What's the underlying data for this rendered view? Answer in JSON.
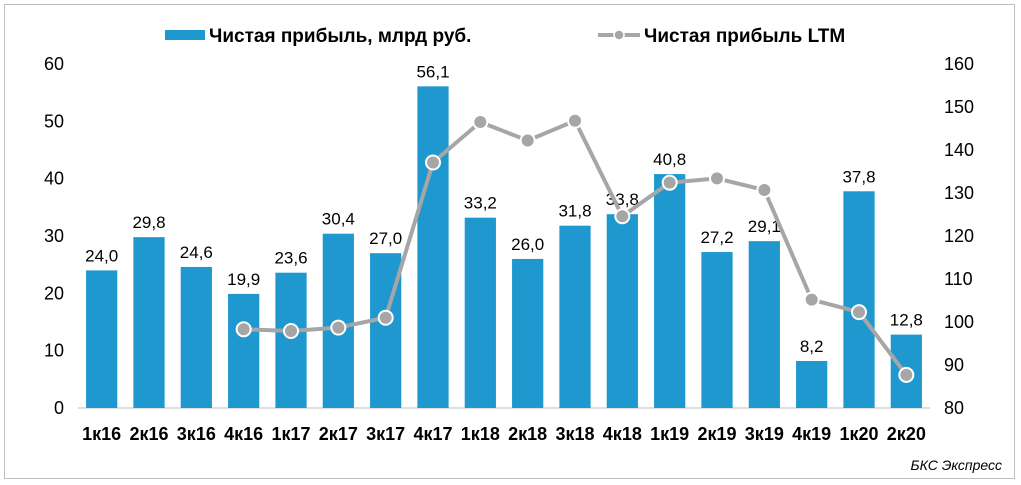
{
  "chart_data": {
    "type": "bar",
    "categories": [
      "1к16",
      "2к16",
      "3к16",
      "4к16",
      "1к17",
      "2к17",
      "3к17",
      "4к17",
      "1к18",
      "2к18",
      "3к18",
      "4к18",
      "1к19",
      "2к19",
      "3к19",
      "4к19",
      "1к20",
      "2к20"
    ],
    "series": [
      {
        "name": "Чистая прибыль, млрд руб.",
        "type": "bar",
        "axis": "left",
        "color": "#1f97cf",
        "values": [
          24.0,
          29.8,
          24.6,
          19.9,
          23.6,
          30.4,
          27.0,
          56.1,
          33.2,
          26.0,
          31.8,
          33.8,
          40.8,
          27.2,
          29.1,
          8.2,
          37.8,
          12.8
        ],
        "labels": [
          "24,0",
          "29,8",
          "24,6",
          "19,9",
          "23,6",
          "30,4",
          "27,0",
          "56,1",
          "33,2",
          "26,0",
          "31,8",
          "33,8",
          "40,8",
          "27,2",
          "29,1",
          "8,2",
          "37,8",
          "12,8"
        ]
      },
      {
        "name": "Чистая прибыль LTM",
        "type": "line",
        "axis": "right",
        "color": "#a6a6a6",
        "values": [
          null,
          null,
          null,
          98.3,
          97.9,
          98.7,
          101.0,
          137.1,
          146.5,
          142.2,
          146.8,
          124.6,
          132.4,
          133.4,
          130.7,
          105.2,
          102.3,
          87.7
        ]
      }
    ],
    "ylim": [
      0,
      60
    ],
    "y2lim": [
      80,
      160
    ],
    "yticks": [
      "0",
      "10",
      "20",
      "30",
      "40",
      "50",
      "60"
    ],
    "y2ticks": [
      "80",
      "90",
      "100",
      "110",
      "120",
      "130",
      "140",
      "150",
      "160"
    ],
    "legend_position": "top",
    "grid": false,
    "source": "БКС Экспресс"
  }
}
